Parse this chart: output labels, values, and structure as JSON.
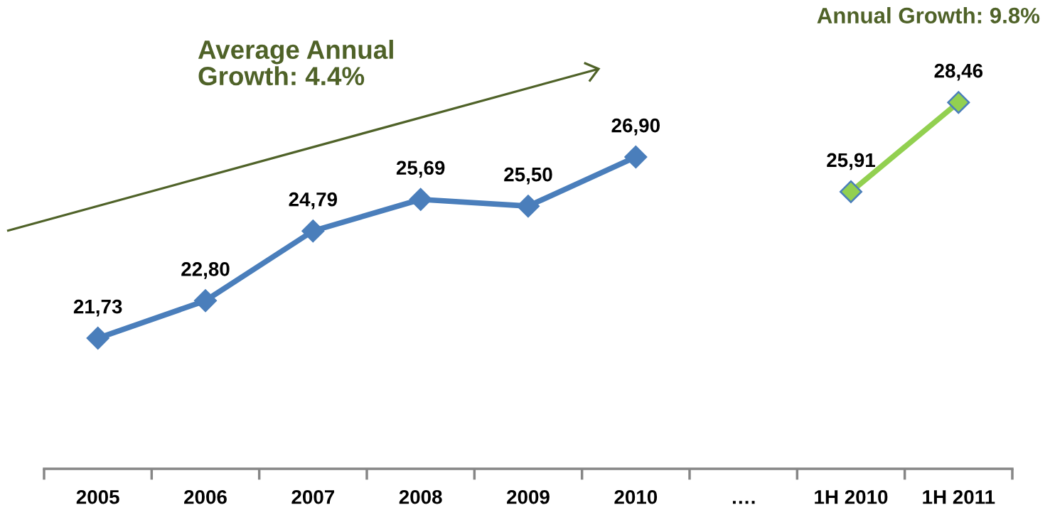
{
  "chart_data": {
    "type": "line",
    "categories": [
      "2005",
      "2006",
      "2007",
      "2008",
      "2009",
      "2010",
      "….",
      "1H 2010",
      "1H 2011"
    ],
    "series": [
      {
        "color": "#4a7ebb",
        "values": [
          21.73,
          22.8,
          24.79,
          25.69,
          25.5,
          26.9,
          null,
          null,
          null
        ],
        "value_labels": [
          "21,73",
          "22,80",
          "24,79",
          "25,69",
          "25,50",
          "26,90",
          null,
          null,
          null
        ]
      },
      {
        "color": "#92d050",
        "values": [
          null,
          null,
          null,
          null,
          null,
          null,
          null,
          25.91,
          28.46
        ],
        "value_labels": [
          null,
          null,
          null,
          null,
          null,
          null,
          null,
          "25,91",
          "28,46"
        ]
      }
    ],
    "tick_labels": "x",
    "marker": "diamond",
    "line_style": "solid",
    "annotations": [
      "Average Annual\nGrowth: 4.4%",
      "Annual Growth: 9.8%"
    ]
  }
}
